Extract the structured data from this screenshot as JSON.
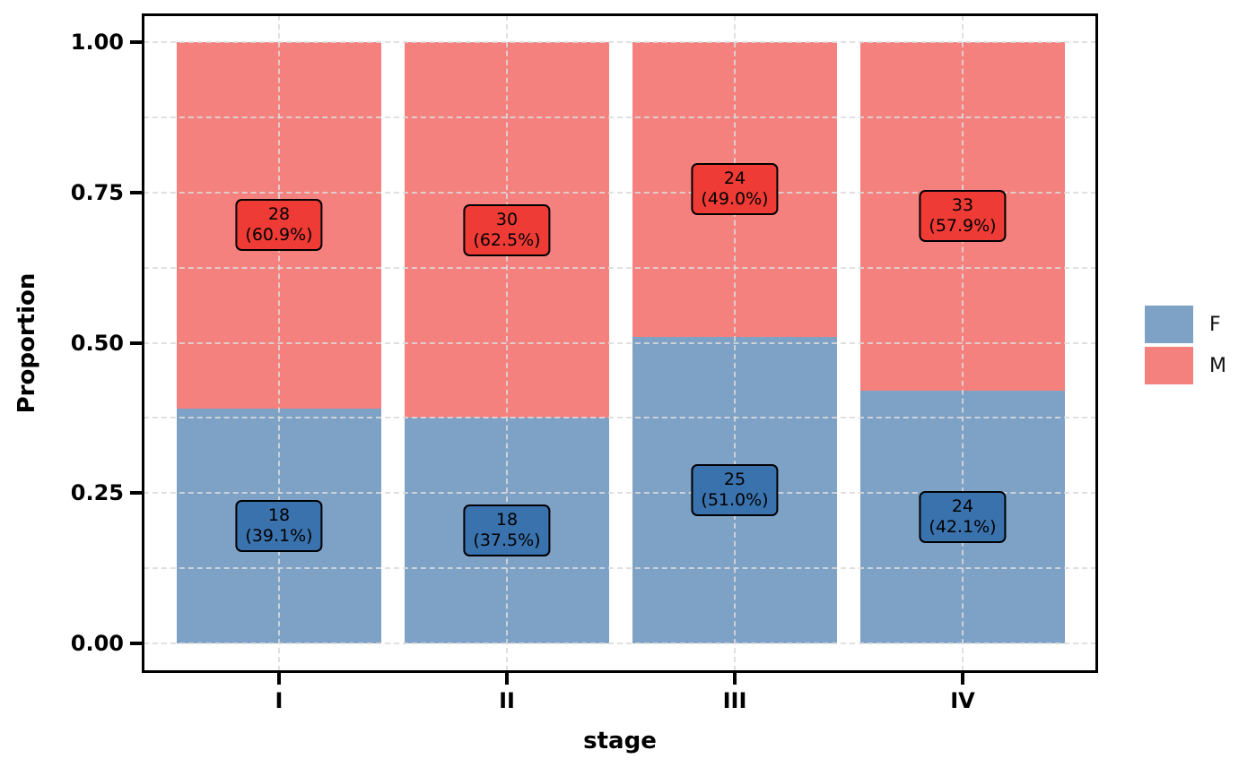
{
  "colors": {
    "bar_F": "#7EA1C6",
    "bar_M": "#F5817E",
    "label_box_F": "#3A72AD",
    "label_box_M": "#EE3B35",
    "grid": "#DBDBDB",
    "axis_text": "#000000",
    "panel_border": "#000000",
    "background": "#FFFFFF"
  },
  "chart_data": {
    "type": "bar",
    "subtype": "stacked-proportion",
    "title": "",
    "xlabel": "stage",
    "ylabel": "Proportion",
    "categories": [
      "I",
      "II",
      "III",
      "IV"
    ],
    "series": [
      {
        "name": "F",
        "counts": [
          18,
          18,
          25,
          24
        ],
        "proportions": [
          0.391,
          0.375,
          0.51,
          0.421
        ],
        "pct_labels": [
          "(39.1%)",
          "(37.5%)",
          "(51.0%)",
          "(42.1%)"
        ]
      },
      {
        "name": "M",
        "counts": [
          28,
          30,
          24,
          33
        ],
        "proportions": [
          0.609,
          0.625,
          0.49,
          0.579
        ],
        "pct_labels": [
          "(60.9%)",
          "(62.5%)",
          "(49.0%)",
          "(57.9%)"
        ]
      }
    ],
    "y_ticks": [
      {
        "value": 0.0,
        "label": "0.00"
      },
      {
        "value": 0.25,
        "label": "0.25"
      },
      {
        "value": 0.5,
        "label": "0.50"
      },
      {
        "value": 0.75,
        "label": "0.75"
      },
      {
        "value": 1.0,
        "label": "1.00"
      }
    ],
    "y_minor_gridlines": [
      0.125,
      0.375,
      0.625,
      0.875
    ],
    "ylim": [
      0,
      1
    ],
    "grid": "dashed, light gray, drawn over bars; horizontal at 0.125 steps, vertical at category centers",
    "legend": {
      "position": "right",
      "title": "",
      "entries": [
        {
          "label": "F",
          "color_key": "bar_F"
        },
        {
          "label": "M",
          "color_key": "bar_M"
        }
      ]
    }
  }
}
